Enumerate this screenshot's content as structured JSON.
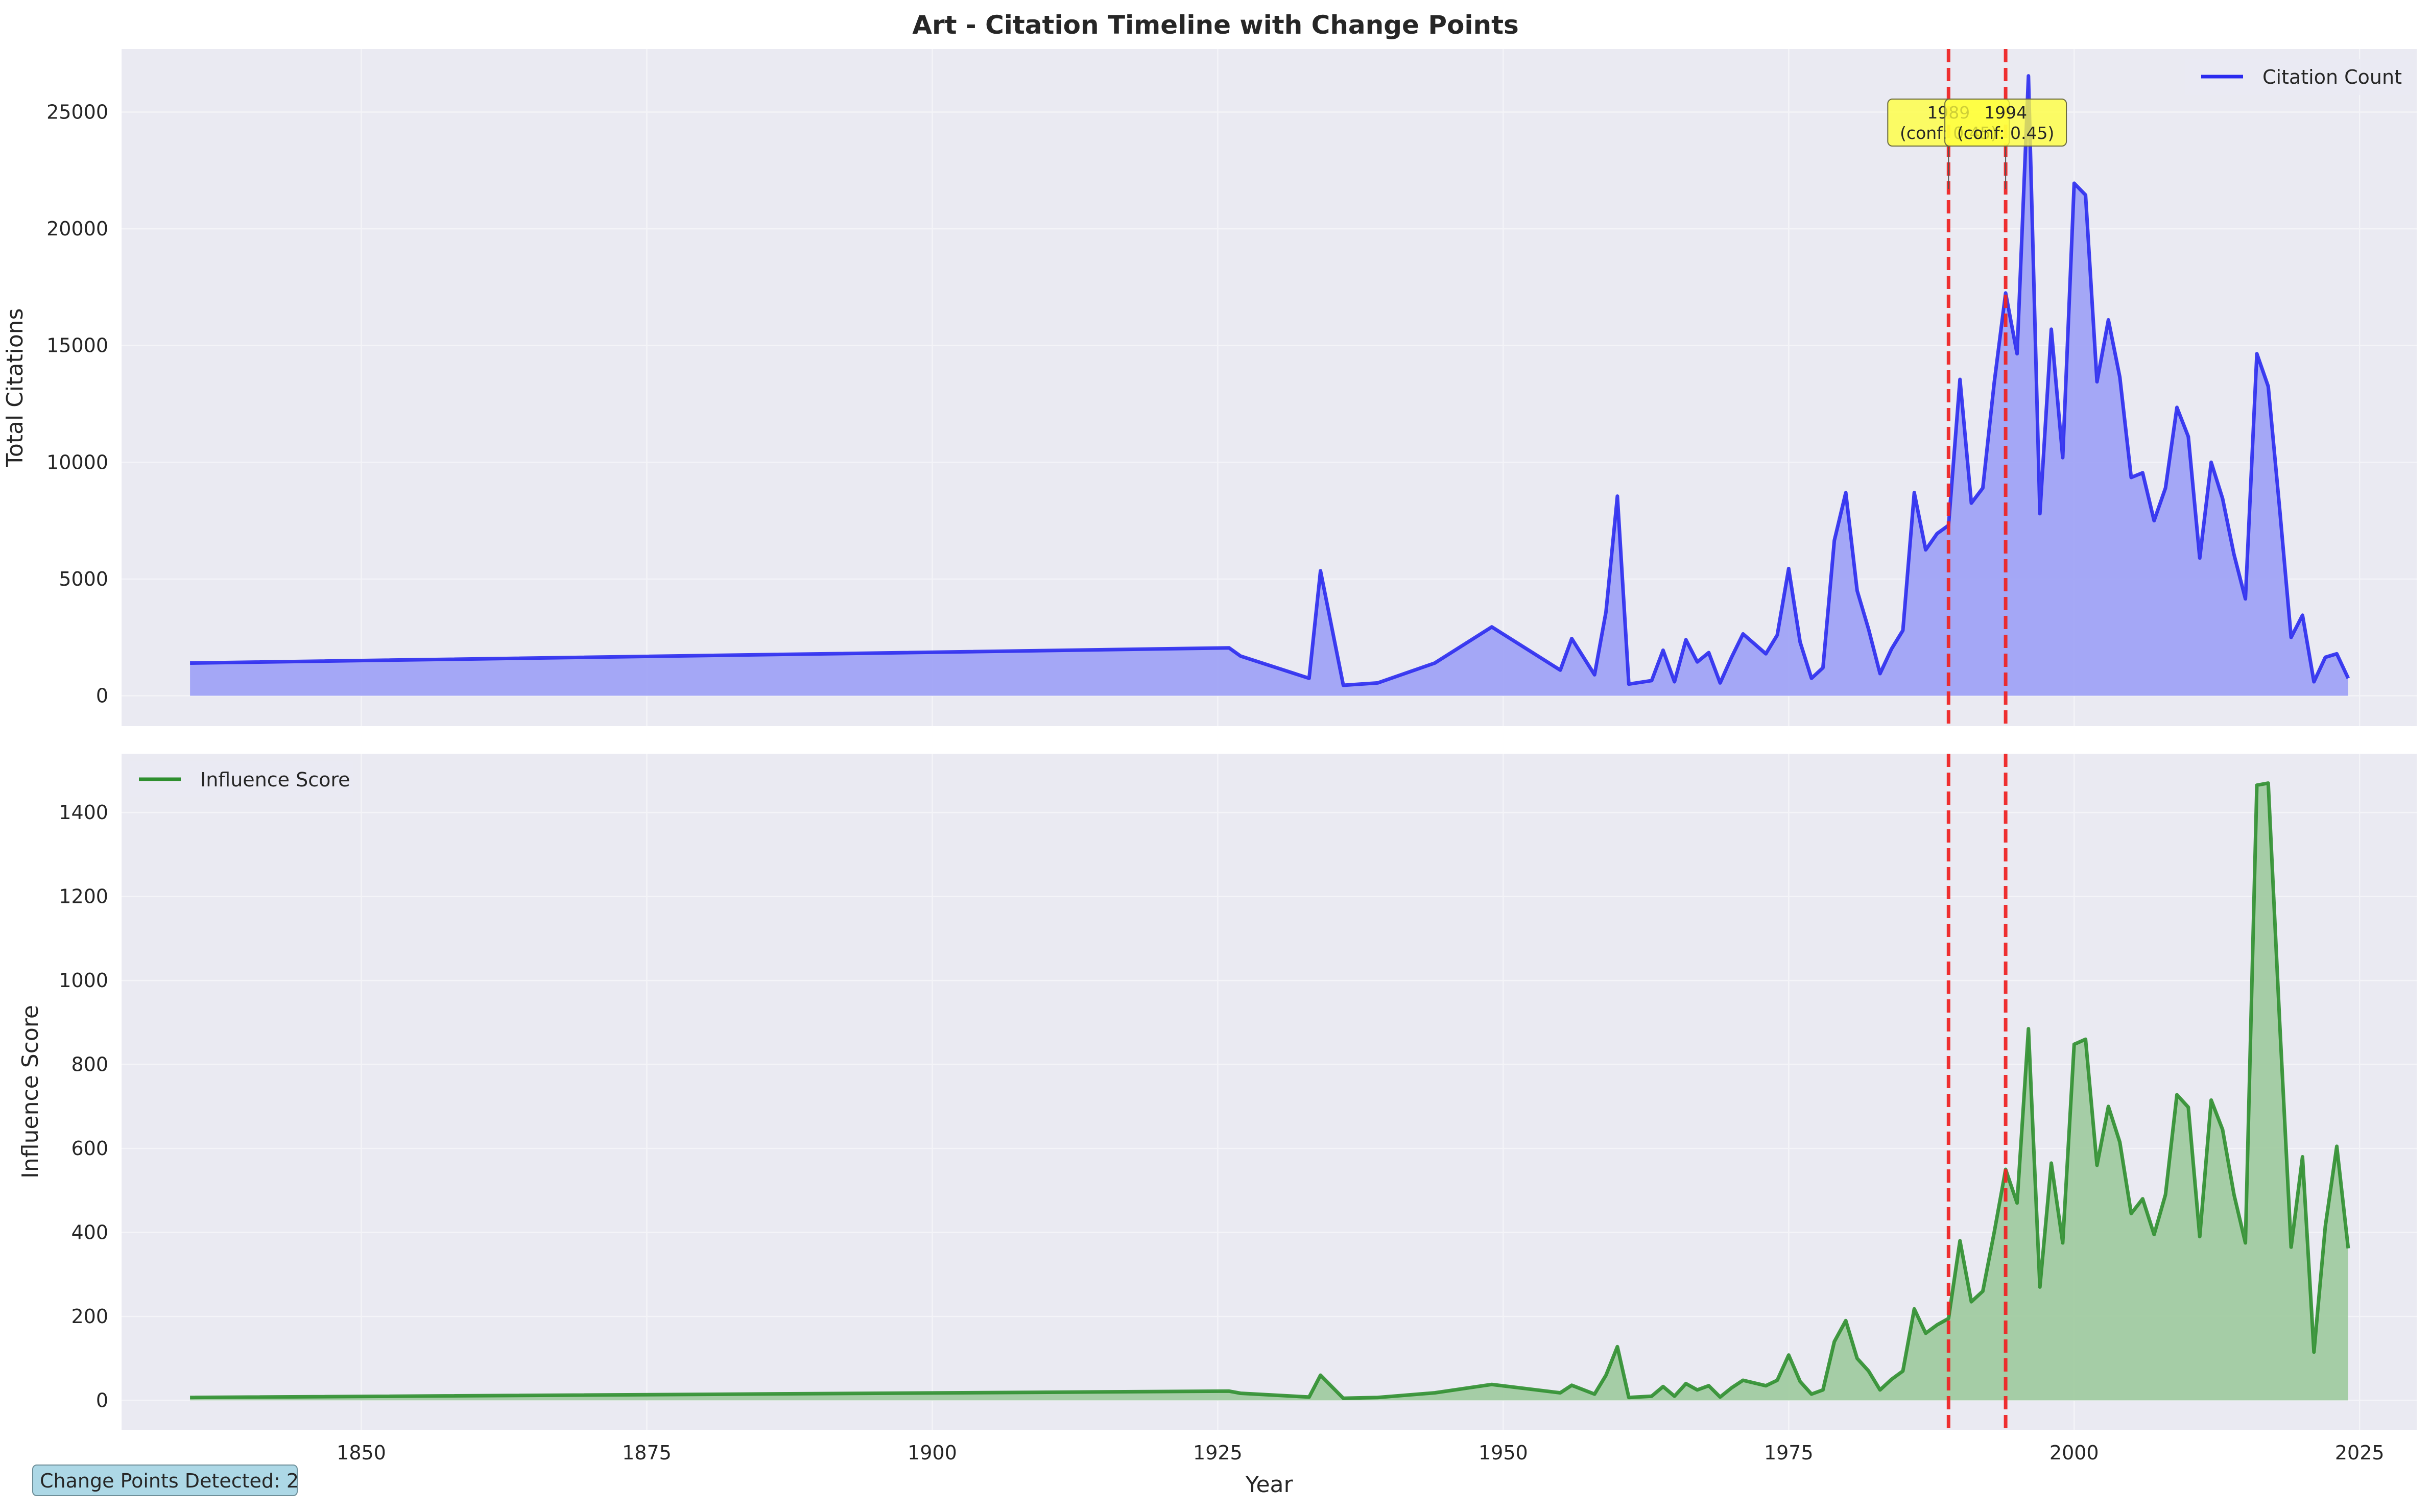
{
  "title": "Art - Citation Timeline with Change Points",
  "footer": "Change Points Detected: 2",
  "colors": {
    "axes_bg": "#eaeaf2",
    "grid": "#f4f4f8",
    "citation_line": "#2b2bef",
    "citation_fill": "#a0a3f6",
    "influence_line": "#2f8f2f",
    "influence_fill": "#a1cba1",
    "change_point": "#ee2525",
    "annotation_bg": "#ffff3c",
    "footer_bg": "#add8e6"
  },
  "chart_data": [
    {
      "type": "area",
      "ylabel": "Total Citations",
      "legend": "Citation Count",
      "legend_position": "top-right",
      "grid": true,
      "xlim": [
        1829,
        2030
      ],
      "ylim": [
        -1300,
        27700
      ],
      "yticks": [
        0,
        5000,
        10000,
        15000,
        20000,
        25000
      ],
      "change_points": [
        {
          "year": 1989,
          "label": "1989",
          "conf": "(conf: 0.45)"
        },
        {
          "year": 1994,
          "label": "1994",
          "conf": "(conf: 0.45)"
        }
      ],
      "x": [
        1835,
        1926,
        1927,
        1933,
        1934,
        1936,
        1939,
        1944,
        1949,
        1955,
        1956,
        1958,
        1959,
        1960,
        1961,
        1963,
        1964,
        1965,
        1966,
        1967,
        1968,
        1969,
        1970,
        1971,
        1973,
        1974,
        1975,
        1976,
        1977,
        1978,
        1979,
        1980,
        1981,
        1982,
        1983,
        1984,
        1985,
        1986,
        1987,
        1988,
        1989,
        1990,
        1991,
        1992,
        1993,
        1994,
        1995,
        1996,
        1997,
        1998,
        1999,
        2000,
        2001,
        2002,
        2003,
        2004,
        2005,
        2006,
        2007,
        2008,
        2009,
        2010,
        2011,
        2012,
        2013,
        2014,
        2015,
        2016,
        2017,
        2018,
        2019,
        2020,
        2021,
        2022,
        2023,
        2024
      ],
      "y": [
        1400,
        2050,
        1700,
        750,
        5350,
        450,
        550,
        1400,
        2950,
        1100,
        2450,
        900,
        3600,
        8550,
        500,
        650,
        1950,
        600,
        2400,
        1450,
        1850,
        550,
        1650,
        2650,
        1800,
        2600,
        5450,
        2300,
        750,
        1200,
        6650,
        8700,
        4500,
        2850,
        950,
        2000,
        2800,
        8700,
        6250,
        6950,
        7300,
        13550,
        8250,
        8900,
        13400,
        17250,
        14650,
        26550,
        7800,
        15700,
        10200,
        21950,
        21450,
        13450,
        16100,
        13650,
        9350,
        9550,
        7500,
        8900,
        12350,
        11100,
        5900,
        10000,
        8450,
        6050,
        4150,
        14650,
        13250,
        8000,
        2500,
        3450,
        600,
        1650,
        1800,
        750
      ]
    },
    {
      "type": "area",
      "xlabel": "Year",
      "ylabel": "Influence Score",
      "legend": "Influence Score",
      "legend_position": "top-left",
      "grid": true,
      "xlim": [
        1829,
        2030
      ],
      "ylim": [
        -70,
        1540
      ],
      "yticks": [
        0,
        200,
        400,
        600,
        800,
        1000,
        1200,
        1400
      ],
      "xticks": [
        1850,
        1875,
        1900,
        1925,
        1950,
        1975,
        2000,
        2025
      ],
      "change_points": [
        1989,
        1994
      ],
      "x": [
        1835,
        1926,
        1927,
        1933,
        1934,
        1936,
        1939,
        1944,
        1949,
        1955,
        1956,
        1958,
        1959,
        1960,
        1961,
        1963,
        1964,
        1965,
        1966,
        1967,
        1968,
        1969,
        1970,
        1971,
        1973,
        1974,
        1975,
        1976,
        1977,
        1978,
        1979,
        1980,
        1981,
        1982,
        1983,
        1984,
        1985,
        1986,
        1987,
        1988,
        1989,
        1990,
        1991,
        1992,
        1993,
        1994,
        1995,
        1996,
        1997,
        1998,
        1999,
        2000,
        2001,
        2002,
        2003,
        2004,
        2005,
        2006,
        2007,
        2008,
        2009,
        2010,
        2011,
        2012,
        2013,
        2014,
        2015,
        2016,
        2017,
        2018,
        2019,
        2020,
        2021,
        2022,
        2023,
        2024
      ],
      "y": [
        7,
        22,
        17,
        8,
        60,
        5,
        7,
        18,
        38,
        18,
        36,
        15,
        60,
        128,
        7,
        10,
        33,
        10,
        40,
        25,
        35,
        8,
        30,
        48,
        35,
        48,
        108,
        45,
        15,
        25,
        140,
        190,
        100,
        70,
        25,
        50,
        70,
        218,
        160,
        180,
        195,
        380,
        235,
        260,
        400,
        550,
        470,
        885,
        270,
        565,
        375,
        848,
        860,
        560,
        700,
        615,
        445,
        480,
        395,
        490,
        728,
        698,
        390,
        715,
        645,
        490,
        375,
        1465,
        1470,
        900,
        365,
        580,
        115,
        415,
        605,
        362
      ]
    }
  ]
}
